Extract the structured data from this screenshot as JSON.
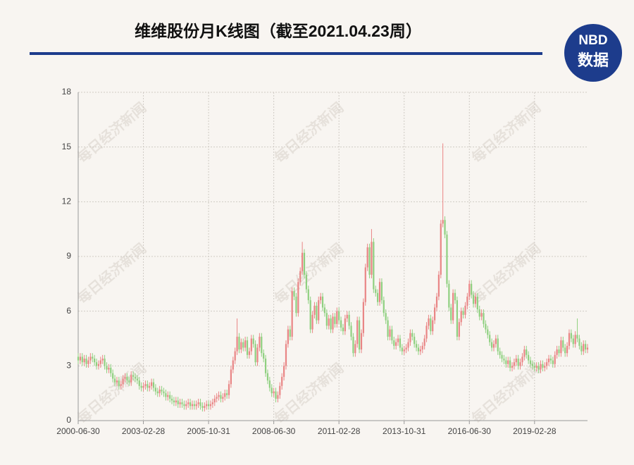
{
  "chart_data": {
    "type": "candlestick",
    "title": "维维股份月K线图（截至2021.04.23周）",
    "logo_top": "NBD",
    "logo_bottom": "数据",
    "watermark": "每日经济新闻",
    "up_color": "#e98585",
    "down_color": "#8fd080",
    "grid": true,
    "ylim": [
      0,
      18
    ],
    "yticks": [
      0,
      3,
      6,
      9,
      12,
      15,
      18
    ],
    "categories": [
      "2000-06-30",
      null,
      null,
      null,
      null,
      null,
      null,
      null,
      null,
      null,
      null,
      null,
      null,
      null,
      null,
      null,
      null,
      null,
      null,
      null,
      null,
      null,
      null,
      null,
      null,
      null,
      null,
      null,
      null,
      null,
      null,
      null,
      "2003-02-28",
      null,
      null,
      null,
      null,
      null,
      null,
      null,
      null,
      null,
      null,
      null,
      null,
      null,
      null,
      null,
      null,
      null,
      null,
      null,
      null,
      null,
      null,
      null,
      null,
      null,
      null,
      null,
      null,
      null,
      null,
      null,
      "2005-10-31",
      null,
      null,
      null,
      null,
      null,
      null,
      null,
      null,
      null,
      null,
      null,
      null,
      null,
      null,
      null,
      null,
      null,
      null,
      null,
      null,
      null,
      null,
      null,
      null,
      null,
      null,
      null,
      null,
      null,
      null,
      null,
      "2008-06-30",
      null,
      null,
      null,
      null,
      null,
      null,
      null,
      null,
      null,
      null,
      null,
      null,
      null,
      null,
      null,
      null,
      null,
      null,
      null,
      null,
      null,
      null,
      null,
      null,
      null,
      null,
      null,
      null,
      null,
      null,
      null,
      "2011-02-28",
      null,
      null,
      null,
      null,
      null,
      null,
      null,
      null,
      null,
      null,
      null,
      null,
      null,
      null,
      null,
      null,
      null,
      null,
      null,
      null,
      null,
      null,
      null,
      null,
      null,
      null,
      null,
      null,
      null,
      null,
      null,
      "2013-10-31",
      null,
      null,
      null,
      null,
      null,
      null,
      null,
      null,
      null,
      null,
      null,
      null,
      null,
      null,
      null,
      null,
      null,
      null,
      null,
      null,
      null,
      null,
      null,
      null,
      null,
      null,
      null,
      null,
      null,
      null,
      null,
      "2016-06-30",
      null,
      null,
      null,
      null,
      null,
      null,
      null,
      null,
      null,
      null,
      null,
      null,
      null,
      null,
      null,
      null,
      null,
      null,
      null,
      null,
      null,
      null,
      null,
      null,
      null,
      null,
      null,
      null,
      null,
      null,
      null,
      "2019-02-28",
      null,
      null,
      null,
      null,
      null,
      null,
      null,
      null,
      null,
      null,
      null,
      null,
      null,
      null,
      null,
      null,
      null,
      null,
      null,
      null,
      null,
      null,
      null,
      null,
      null,
      null
    ],
    "open": [
      3.5,
      3.3,
      3.5,
      3.2,
      3.4,
      3.1,
      3.3,
      3.5,
      3.4,
      3.2,
      3.0,
      3.1,
      3.3,
      3.4,
      3.0,
      2.8,
      2.9,
      2.6,
      2.3,
      2.1,
      2.2,
      1.9,
      2.0,
      2.3,
      2.4,
      2.2,
      2.1,
      2.5,
      2.4,
      2.3,
      2.2,
      1.9,
      1.8,
      1.9,
      2.0,
      1.8,
      1.9,
      2.1,
      1.8,
      1.6,
      1.5,
      1.7,
      1.6,
      1.5,
      1.3,
      1.4,
      1.2,
      1.1,
      1.0,
      1.1,
      0.9,
      1.0,
      0.9,
      0.8,
      0.9,
      1.0,
      0.8,
      0.9,
      0.8,
      0.9,
      1.0,
      0.8,
      0.7,
      0.8,
      0.9,
      0.8,
      0.9,
      1.0,
      1.2,
      1.3,
      1.4,
      1.2,
      1.3,
      1.5,
      1.4,
      2.0,
      2.8,
      3.3,
      3.8,
      4.6,
      3.9,
      4.3,
      4.0,
      4.4,
      3.6,
      3.8,
      4.5,
      4.2,
      3.2,
      4.0,
      4.6,
      3.7,
      3.4,
      2.6,
      2.2,
      1.8,
      1.5,
      1.6,
      1.2,
      1.4,
      1.9,
      2.4,
      3.0,
      4.2,
      5.0,
      4.6,
      7.1,
      6.8,
      5.9,
      7.6,
      8.2,
      9.2,
      8.0,
      7.2,
      6.6,
      5.0,
      5.8,
      6.3,
      5.5,
      6.6,
      6.8,
      6.2,
      5.9,
      5.2,
      5.6,
      5.0,
      5.7,
      5.3,
      6.0,
      5.5,
      5.1,
      4.9,
      5.6,
      5.8,
      5.2,
      4.6,
      3.7,
      4.2,
      5.5,
      3.9,
      4.8,
      6.5,
      8.4,
      9.5,
      8.0,
      9.8,
      7.2,
      7.0,
      6.5,
      7.6,
      6.6,
      5.9,
      5.5,
      4.6,
      5.0,
      4.4,
      4.1,
      4.3,
      4.5,
      4.0,
      3.8,
      3.9,
      4.0,
      4.3,
      4.8,
      4.6,
      4.2,
      4.0,
      3.8,
      3.9,
      4.1,
      4.5,
      5.2,
      5.6,
      4.9,
      5.5,
      6.2,
      6.8,
      8.0,
      10.8,
      11.0,
      10.2,
      7.5,
      6.2,
      5.5,
      7.0,
      6.6,
      4.6,
      5.4,
      6.0,
      5.8,
      6.3,
      6.8,
      7.5,
      6.9,
      6.4,
      6.8,
      6.1,
      5.7,
      5.9,
      5.3,
      5.0,
      4.7,
      4.3,
      4.0,
      4.2,
      4.5,
      3.8,
      3.6,
      3.4,
      3.3,
      3.1,
      3.3,
      2.9,
      3.0,
      3.2,
      3.4,
      3.0,
      3.2,
      3.5,
      3.9,
      3.6,
      3.3,
      3.1,
      3.0,
      2.9,
      3.0,
      2.8,
      3.1,
      2.9,
      3.0,
      3.2,
      3.4,
      3.3,
      3.1,
      3.6,
      3.9,
      3.7,
      4.4,
      4.0,
      3.7,
      4.1,
      4.8,
      4.5,
      4.2,
      4.7,
      4.5,
      4.1,
      3.8,
      4.2,
      3.9
    ],
    "close": [
      3.3,
      3.5,
      3.2,
      3.4,
      3.1,
      3.3,
      3.5,
      3.4,
      3.2,
      3.0,
      3.1,
      3.3,
      3.4,
      3.0,
      2.8,
      2.9,
      2.6,
      2.3,
      2.1,
      2.2,
      1.9,
      2.0,
      2.3,
      2.4,
      2.2,
      2.1,
      2.5,
      2.4,
      2.3,
      2.2,
      1.9,
      1.8,
      1.9,
      2.0,
      1.8,
      1.9,
      2.1,
      1.8,
      1.6,
      1.5,
      1.7,
      1.6,
      1.5,
      1.3,
      1.4,
      1.2,
      1.1,
      1.0,
      1.1,
      0.9,
      1.0,
      0.9,
      0.8,
      0.9,
      1.0,
      0.8,
      0.9,
      0.8,
      0.9,
      1.0,
      0.8,
      0.7,
      0.8,
      0.9,
      0.8,
      0.9,
      1.0,
      1.2,
      1.3,
      1.4,
      1.2,
      1.3,
      1.5,
      1.4,
      2.0,
      2.8,
      3.3,
      3.8,
      4.6,
      3.9,
      4.3,
      4.0,
      4.4,
      3.6,
      3.8,
      4.5,
      4.2,
      3.2,
      4.0,
      4.6,
      3.7,
      3.4,
      2.6,
      2.2,
      1.8,
      1.5,
      1.6,
      1.2,
      1.4,
      1.9,
      2.4,
      3.0,
      4.2,
      5.0,
      4.6,
      7.1,
      6.8,
      5.9,
      7.6,
      8.2,
      9.2,
      8.0,
      7.2,
      6.6,
      5.0,
      5.8,
      6.3,
      5.5,
      6.6,
      6.8,
      6.2,
      5.9,
      5.2,
      5.6,
      5.0,
      5.7,
      5.3,
      6.0,
      5.5,
      5.1,
      4.9,
      5.6,
      5.8,
      5.2,
      4.6,
      3.7,
      4.2,
      5.5,
      3.9,
      4.8,
      6.5,
      8.4,
      9.5,
      8.0,
      9.8,
      7.2,
      7.0,
      6.5,
      7.6,
      6.6,
      5.9,
      5.5,
      4.6,
      5.0,
      4.4,
      4.1,
      4.3,
      4.5,
      4.0,
      3.8,
      3.9,
      4.0,
      4.3,
      4.8,
      4.6,
      4.2,
      4.0,
      3.8,
      3.9,
      4.1,
      4.5,
      5.2,
      5.6,
      4.9,
      5.5,
      6.2,
      6.8,
      8.0,
      10.8,
      11.0,
      10.2,
      7.5,
      6.2,
      5.5,
      7.0,
      6.6,
      4.6,
      5.4,
      6.0,
      5.8,
      6.3,
      6.8,
      7.5,
      6.9,
      6.4,
      6.8,
      6.1,
      5.7,
      5.9,
      5.3,
      5.0,
      4.7,
      4.3,
      4.0,
      4.2,
      4.5,
      3.8,
      3.6,
      3.4,
      3.3,
      3.1,
      3.3,
      2.9,
      3.0,
      3.2,
      3.4,
      3.0,
      3.2,
      3.5,
      3.9,
      3.6,
      3.3,
      3.1,
      3.0,
      2.9,
      3.0,
      2.8,
      3.1,
      2.9,
      3.0,
      3.2,
      3.4,
      3.3,
      3.1,
      3.6,
      3.9,
      3.7,
      4.4,
      4.0,
      3.7,
      4.1,
      4.8,
      4.5,
      4.2,
      4.7,
      4.5,
      4.1,
      3.8,
      4.2,
      3.9,
      4.0
    ],
    "high": [
      3.7,
      3.7,
      3.7,
      3.6,
      3.6,
      3.5,
      3.7,
      3.7,
      3.6,
      3.4,
      3.3,
      3.5,
      3.6,
      3.6,
      3.2,
      3.1,
      3.1,
      2.8,
      2.5,
      2.4,
      2.4,
      2.2,
      2.5,
      2.6,
      2.6,
      2.4,
      2.7,
      2.7,
      2.6,
      2.5,
      2.4,
      2.1,
      2.1,
      2.2,
      2.2,
      2.1,
      2.3,
      2.3,
      2.0,
      1.8,
      1.9,
      1.9,
      1.8,
      1.7,
      1.6,
      1.6,
      1.4,
      1.3,
      1.3,
      1.3,
      1.2,
      1.2,
      1.1,
      1.1,
      1.2,
      1.2,
      1.1,
      1.1,
      1.1,
      1.2,
      1.2,
      1.0,
      1.0,
      1.1,
      1.1,
      1.1,
      1.2,
      1.4,
      1.5,
      1.6,
      1.6,
      1.5,
      1.7,
      1.7,
      2.2,
      3.0,
      3.5,
      4.0,
      5.6,
      4.8,
      4.5,
      4.5,
      4.6,
      4.6,
      4.0,
      4.7,
      4.7,
      4.4,
      4.2,
      4.8,
      4.8,
      3.9,
      3.6,
      2.8,
      2.4,
      2.0,
      1.8,
      1.8,
      1.6,
      2.1,
      2.6,
      3.2,
      4.4,
      5.2,
      5.2,
      7.3,
      7.3,
      7.0,
      7.8,
      8.4,
      9.8,
      9.4,
      8.2,
      7.4,
      6.8,
      6.0,
      6.5,
      6.5,
      6.8,
      7.0,
      7.0,
      6.4,
      6.1,
      5.8,
      5.8,
      5.9,
      5.9,
      6.2,
      6.2,
      5.7,
      5.3,
      5.8,
      6.0,
      6.0,
      5.4,
      4.8,
      4.4,
      5.7,
      5.7,
      5.0,
      6.7,
      8.6,
      9.7,
      9.7,
      10.5,
      10.0,
      7.4,
      7.2,
      7.8,
      7.8,
      6.8,
      6.1,
      5.7,
      5.2,
      5.2,
      4.6,
      4.5,
      4.7,
      4.7,
      4.2,
      4.1,
      4.2,
      4.5,
      5.0,
      5.0,
      4.8,
      4.4,
      4.2,
      4.1,
      4.3,
      4.7,
      5.4,
      5.8,
      5.8,
      5.7,
      6.4,
      7.0,
      8.2,
      11.0,
      15.2,
      11.2,
      10.4,
      7.7,
      6.4,
      7.2,
      7.2,
      6.8,
      5.6,
      6.2,
      6.2,
      6.5,
      7.0,
      7.7,
      7.7,
      7.1,
      7.0,
      7.0,
      6.3,
      6.1,
      6.1,
      5.5,
      5.2,
      4.9,
      4.5,
      4.4,
      4.7,
      4.7,
      4.0,
      3.8,
      3.6,
      3.5,
      3.5,
      3.5,
      3.2,
      3.4,
      3.6,
      3.6,
      3.4,
      3.7,
      4.1,
      4.1,
      3.8,
      3.5,
      3.3,
      3.2,
      3.2,
      3.2,
      3.3,
      3.3,
      3.2,
      3.4,
      3.6,
      3.6,
      3.5,
      3.8,
      4.1,
      4.1,
      4.6,
      4.6,
      4.2,
      4.3,
      5.0,
      5.0,
      4.7,
      4.9,
      5.6,
      4.7,
      4.3,
      4.4,
      4.4,
      4.2
    ],
    "low": [
      3.1,
      3.1,
      3.0,
      3.0,
      2.9,
      2.9,
      3.1,
      3.2,
      3.0,
      2.8,
      2.8,
      2.9,
      3.1,
      2.8,
      2.6,
      2.6,
      2.4,
      2.1,
      1.9,
      1.9,
      1.7,
      1.7,
      1.8,
      2.1,
      2.0,
      1.9,
      1.9,
      2.2,
      2.1,
      2.0,
      1.7,
      1.6,
      1.6,
      1.7,
      1.6,
      1.6,
      1.7,
      1.6,
      1.4,
      1.3,
      1.3,
      1.4,
      1.3,
      1.1,
      1.1,
      1.0,
      0.9,
      0.8,
      0.8,
      0.7,
      0.7,
      0.7,
      0.6,
      0.6,
      0.7,
      0.6,
      0.6,
      0.6,
      0.6,
      0.7,
      0.6,
      0.5,
      0.5,
      0.6,
      0.6,
      0.6,
      0.7,
      0.8,
      1.0,
      1.1,
      1.0,
      1.0,
      1.1,
      1.2,
      1.2,
      1.8,
      2.6,
      3.1,
      3.6,
      3.7,
      3.7,
      3.8,
      3.8,
      3.4,
      3.4,
      3.6,
      4.0,
      3.0,
      3.0,
      3.8,
      3.5,
      3.2,
      2.4,
      2.0,
      1.6,
      1.3,
      1.3,
      1.0,
      1.0,
      1.2,
      1.7,
      2.2,
      2.8,
      4.0,
      4.4,
      4.4,
      6.6,
      5.7,
      5.7,
      7.4,
      8.0,
      7.8,
      7.0,
      6.4,
      4.8,
      4.8,
      5.6,
      5.3,
      5.3,
      6.4,
      6.0,
      5.7,
      5.0,
      5.0,
      4.8,
      4.8,
      5.1,
      5.1,
      5.3,
      4.9,
      4.7,
      4.7,
      5.4,
      5.0,
      4.4,
      3.5,
      3.5,
      4.0,
      3.7,
      3.7,
      4.6,
      6.3,
      8.2,
      7.8,
      7.8,
      7.0,
      6.8,
      6.3,
      6.3,
      6.4,
      5.7,
      5.3,
      4.4,
      4.4,
      4.2,
      3.9,
      3.9,
      4.1,
      3.8,
      3.6,
      3.6,
      3.7,
      3.8,
      4.1,
      4.4,
      4.0,
      3.8,
      3.6,
      3.6,
      3.7,
      3.9,
      4.3,
      5.0,
      4.7,
      4.7,
      5.3,
      6.0,
      6.6,
      7.8,
      10.6,
      10.0,
      7.3,
      6.0,
      5.3,
      5.3,
      6.4,
      4.4,
      4.4,
      5.2,
      5.6,
      5.6,
      6.1,
      6.6,
      6.7,
      6.2,
      6.2,
      5.9,
      5.5,
      5.5,
      5.1,
      4.8,
      4.5,
      4.1,
      3.8,
      3.8,
      4.0,
      3.6,
      3.4,
      3.2,
      3.1,
      2.9,
      2.9,
      2.7,
      2.7,
      2.8,
      3.0,
      2.8,
      2.8,
      3.0,
      3.3,
      3.4,
      3.1,
      2.9,
      2.8,
      2.7,
      2.7,
      2.6,
      2.6,
      2.7,
      2.7,
      2.8,
      3.0,
      3.1,
      2.9,
      2.9,
      3.4,
      3.5,
      3.5,
      3.8,
      3.5,
      3.5,
      3.9,
      4.3,
      4.0,
      4.0,
      4.3,
      3.9,
      3.6,
      3.6,
      3.7,
      3.7
    ]
  }
}
